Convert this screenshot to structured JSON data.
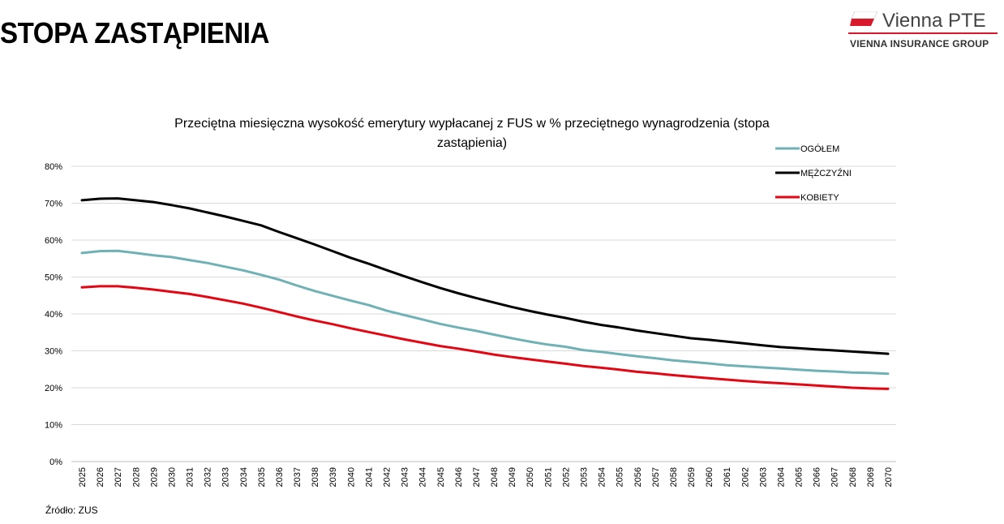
{
  "header": {
    "title": "STOPA ZASTĄPIENIA"
  },
  "logo": {
    "name": "Vienna PTE",
    "subtitle": "VIENNA INSURANCE GROUP",
    "accent": "#d8192b"
  },
  "footer": {
    "source": "Źródło: ZUS"
  },
  "chart_data": {
    "type": "line",
    "title_lines": [
      "Przeciętna miesięczna wysokość emerytury wypłacanej z FUS w % przeciętnego wynagrodzenia (stopa",
      "zastąpienia)"
    ],
    "xlabel": "",
    "ylabel": "",
    "ylim": [
      0,
      80
    ],
    "yticks": [
      "0%",
      "10%",
      "20%",
      "30%",
      "40%",
      "50%",
      "60%",
      "70%",
      "80%"
    ],
    "ytick_values": [
      0,
      10,
      20,
      30,
      40,
      50,
      60,
      70,
      80
    ],
    "grid": true,
    "legend_position": "top-right",
    "categories": [
      "2025",
      "2026",
      "2027",
      "2028",
      "2029",
      "2030",
      "2031",
      "2032",
      "2033",
      "2034",
      "2035",
      "2036",
      "2037",
      "2038",
      "2039",
      "2040",
      "2041",
      "2042",
      "2043",
      "2044",
      "2045",
      "2046",
      "2047",
      "2048",
      "2049",
      "2050",
      "2051",
      "2052",
      "2053",
      "2054",
      "2055",
      "2056",
      "2057",
      "2058",
      "2059",
      "2060",
      "2061",
      "2062",
      "2063",
      "2064",
      "2065",
      "2066",
      "2067",
      "2068",
      "2069",
      "2070"
    ],
    "series": [
      {
        "name": "OGÓŁEM",
        "color": "#6fb1b5",
        "values": [
          56.5,
          57.0,
          57.1,
          56.5,
          55.9,
          55.4,
          54.6,
          53.8,
          52.8,
          51.8,
          50.6,
          49.3,
          47.7,
          46.2,
          44.9,
          43.6,
          42.4,
          40.9,
          39.7,
          38.5,
          37.3,
          36.3,
          35.4,
          34.4,
          33.4,
          32.5,
          31.7,
          31.1,
          30.2,
          29.7,
          29.1,
          28.5,
          28.0,
          27.4,
          27.0,
          26.6,
          26.1,
          25.8,
          25.5,
          25.2,
          24.9,
          24.6,
          24.4,
          24.1,
          24.0,
          23.8
        ]
      },
      {
        "name": "MĘŻCZYŹNI",
        "color": "#000000",
        "values": [
          70.8,
          71.2,
          71.3,
          70.8,
          70.3,
          69.5,
          68.6,
          67.5,
          66.4,
          65.2,
          64.0,
          62.2,
          60.5,
          58.8,
          57.0,
          55.2,
          53.6,
          51.9,
          50.2,
          48.6,
          47.0,
          45.6,
          44.3,
          43.1,
          41.9,
          40.8,
          39.8,
          38.9,
          37.9,
          37.0,
          36.3,
          35.5,
          34.8,
          34.1,
          33.4,
          33.0,
          32.5,
          32.0,
          31.5,
          31.0,
          30.7,
          30.4,
          30.1,
          29.8,
          29.5,
          29.2
        ]
      },
      {
        "name": "KOBIETY",
        "color": "#e30613",
        "values": [
          47.2,
          47.5,
          47.5,
          47.1,
          46.6,
          46.0,
          45.4,
          44.6,
          43.7,
          42.8,
          41.7,
          40.5,
          39.3,
          38.2,
          37.2,
          36.1,
          35.1,
          34.1,
          33.1,
          32.2,
          31.3,
          30.6,
          29.8,
          29.0,
          28.3,
          27.7,
          27.1,
          26.5,
          25.9,
          25.4,
          24.9,
          24.3,
          23.9,
          23.4,
          23.0,
          22.6,
          22.2,
          21.8,
          21.5,
          21.2,
          20.9,
          20.6,
          20.3,
          20.0,
          19.8,
          19.7
        ]
      }
    ]
  }
}
